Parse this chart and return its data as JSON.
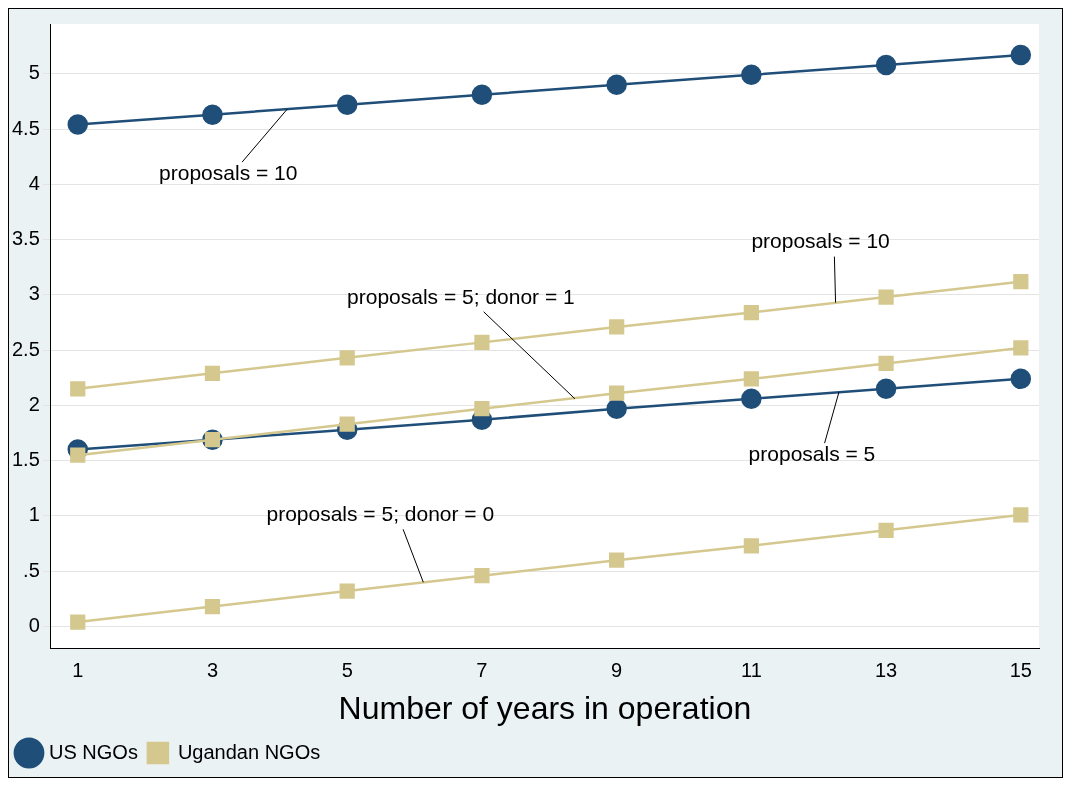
{
  "chart_data": {
    "type": "line",
    "xlabel": "Number of years in operation",
    "x": [
      1,
      3,
      5,
      7,
      9,
      11,
      13,
      15
    ],
    "series": [
      {
        "name": "US NGOs",
        "color": "#1f4e79",
        "marker": "circle",
        "values": [
          4.54,
          4.63,
          4.72,
          4.81,
          4.9,
          4.99,
          5.08,
          5.17
        ]
      },
      {
        "color": "#1f4e79",
        "marker": "circle",
        "values": [
          1.6,
          1.69,
          1.78,
          1.87,
          1.97,
          2.06,
          2.15,
          2.24
        ]
      },
      {
        "name": "Ugandan NGOs",
        "color": "#d4c88f",
        "marker": "square",
        "values": [
          2.15,
          2.29,
          2.43,
          2.57,
          2.71,
          2.84,
          2.98,
          3.12
        ]
      },
      {
        "color": "#d4c88f",
        "marker": "square",
        "values": [
          1.55,
          1.69,
          1.83,
          1.97,
          2.11,
          2.24,
          2.38,
          2.52
        ]
      },
      {
        "color": "#d4c88f",
        "marker": "square",
        "values": [
          0.04,
          0.18,
          0.32,
          0.46,
          0.6,
          0.73,
          0.87,
          1.01
        ]
      }
    ],
    "xlim": [
      0.6,
      15.27
    ],
    "xticks": [
      1,
      3,
      5,
      7,
      9,
      11,
      13,
      15
    ],
    "ylim": [
      -0.2,
      5.45
    ],
    "yticks": [
      0,
      {
        "value": 0.5,
        "label": ".5"
      },
      1,
      1.5,
      2,
      2.5,
      3,
      3.5,
      4,
      4.5,
      5
    ],
    "grid": "y",
    "legend": "bottom left",
    "annotations": [
      {
        "text": "proposals = 10",
        "x": 4.11,
        "y": 4.68
      },
      {
        "text": "proposals = 10",
        "x": 12.25,
        "y": 2.93
      },
      {
        "text": "proposals = 5; donor = 1",
        "x": 8.38,
        "y": 2.06
      },
      {
        "text": "proposals = 5",
        "x": 12.3,
        "y": 2.12
      },
      {
        "text": "proposals = 5; donor = 0",
        "x": 6.13,
        "y": 0.4
      }
    ]
  }
}
